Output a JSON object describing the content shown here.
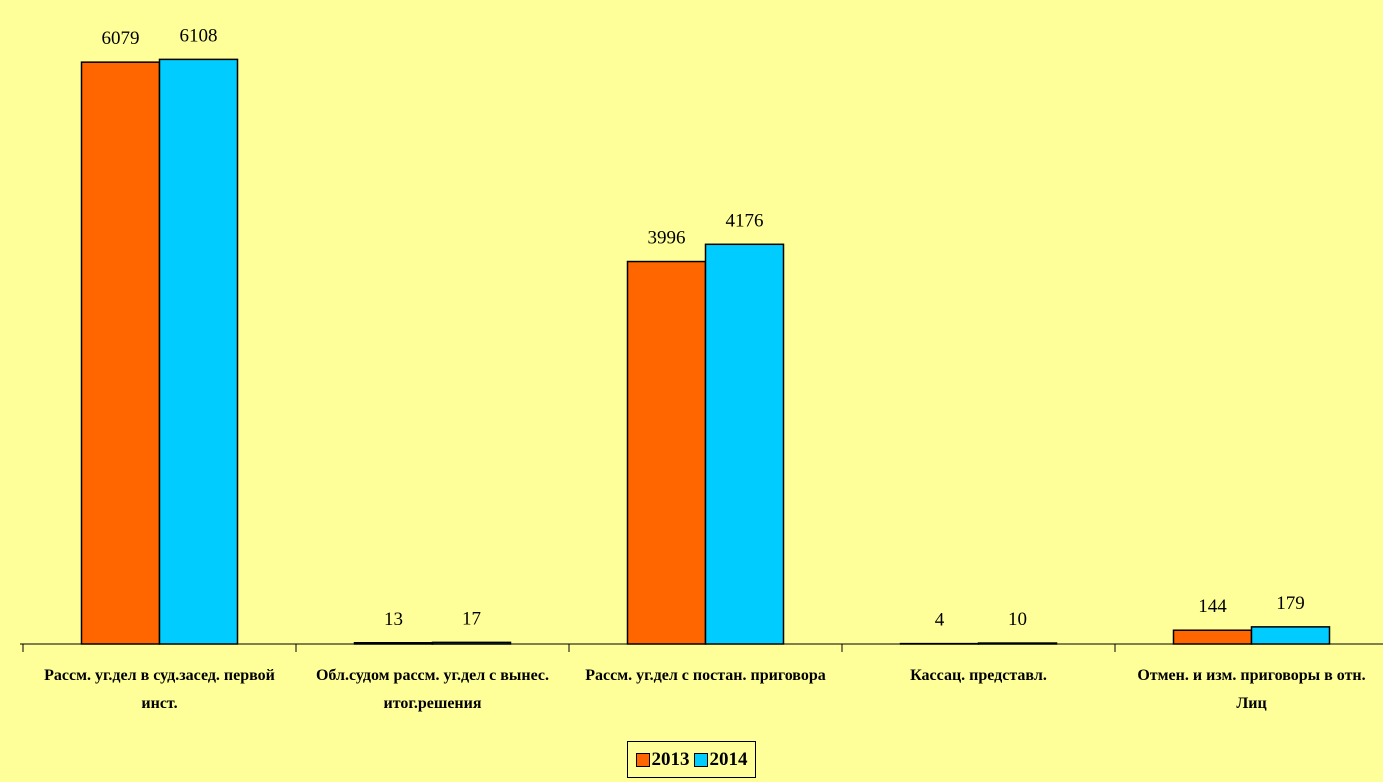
{
  "chart_data": {
    "type": "bar",
    "categories": [
      "Рассм. уг.дел в суд.засед. первой инст.",
      "Обл.судом рассм. уг.дел с вынес. итог.решения",
      "Рассм. уг.дел с постан. приговора",
      "Кассац. представл.",
      "Отмен. и изм. приговоры в отн. Лиц"
    ],
    "series": [
      {
        "name": "2013",
        "color": "#ff6600",
        "values": [
          6079,
          13,
          3996,
          4,
          144
        ]
      },
      {
        "name": "2014",
        "color": "#00ccff",
        "values": [
          6108,
          17,
          4176,
          10,
          179
        ]
      }
    ],
    "ylim": [
      0,
      7000
    ],
    "legend": "bottom"
  }
}
